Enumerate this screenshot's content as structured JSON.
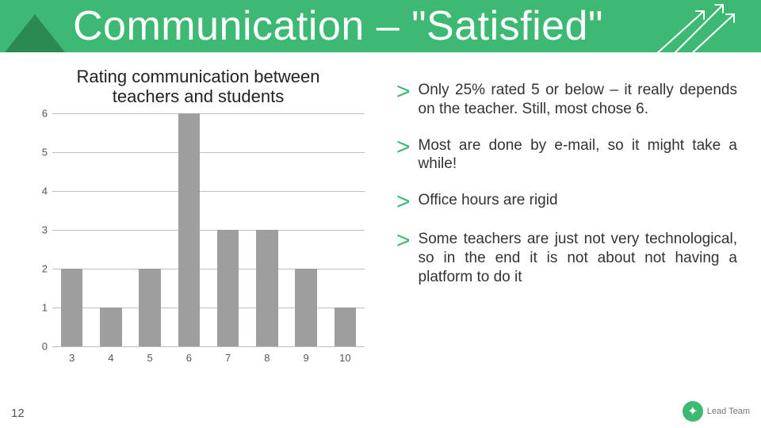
{
  "header": {
    "title": "Communication – \"Satisfied\"",
    "background_color": "#3db974",
    "triangle_color": "#2a8a51",
    "title_color": "#ffffff",
    "title_fontsize": 52,
    "deco_line_color": "#ffffff"
  },
  "chart": {
    "type": "bar",
    "title": "Rating communication between\nteachers and students",
    "title_fontsize": 22,
    "categories": [
      "3",
      "4",
      "5",
      "6",
      "7",
      "8",
      "9",
      "10"
    ],
    "values": [
      2,
      1,
      2,
      6,
      3,
      3,
      2,
      1
    ],
    "bar_color": "#9e9e9e",
    "grid_color": "#bfbfbf",
    "background_color": "#ffffff",
    "label_fontsize": 13,
    "label_color": "#555555",
    "ylim": [
      0,
      6
    ],
    "ytick_step": 1,
    "bar_width": 0.56
  },
  "bullets": {
    "marker": ">",
    "marker_color": "#3db974",
    "marker_fontsize": 30,
    "text_fontsize": 19,
    "text_color": "#333333",
    "items": [
      "Only 25% rated 5 or below – it really depends on the teacher. Still, most chose 6.",
      "Most are done by e-mail, so it might take a while!",
      "Office hours are rigid",
      "Some teachers are just not very technological, so in the end it is not about not having a platform to do it"
    ]
  },
  "page_number": "12",
  "logo": {
    "text": "Lead Team",
    "badge_color": "#3db974"
  }
}
